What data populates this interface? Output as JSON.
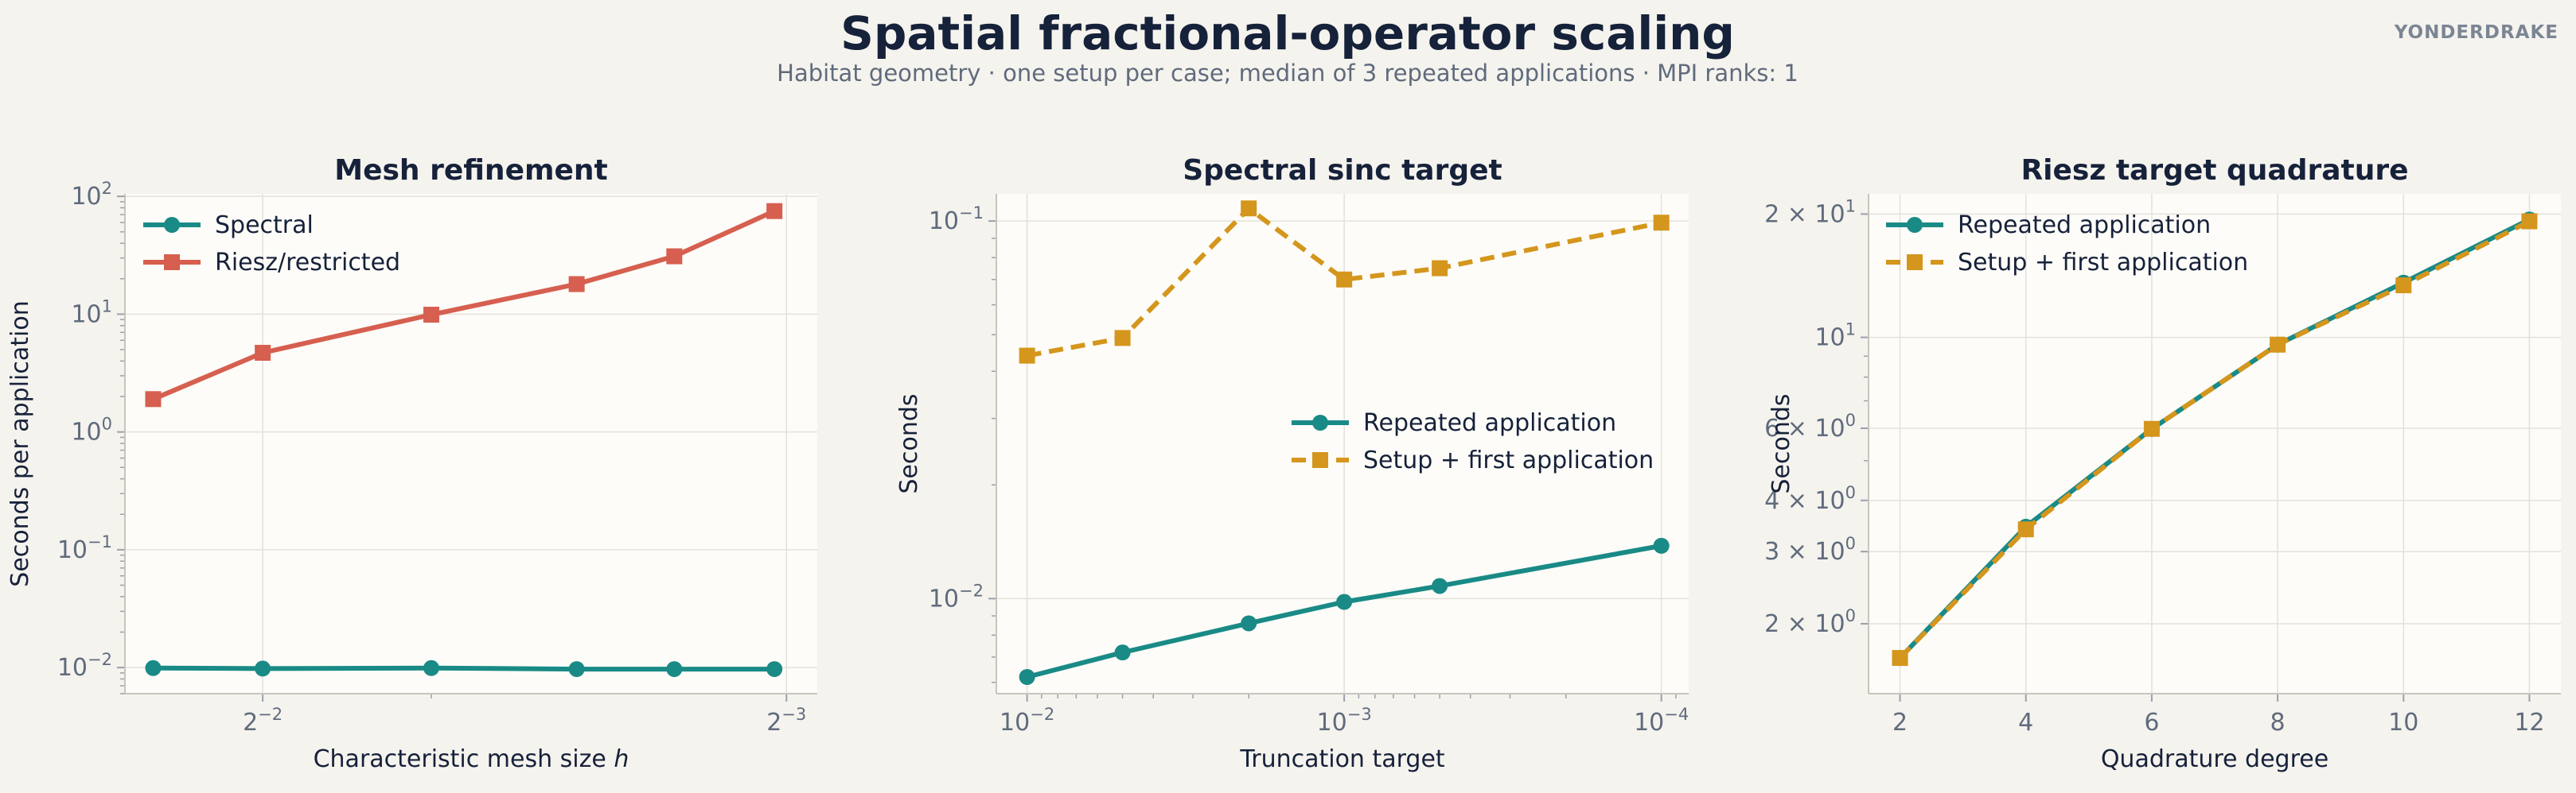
{
  "title": "Spatial fractional-operator scaling",
  "subtitle": "Habitat geometry · one setup per case; median of 3 repeated applications · MPI ranks: 1",
  "brand": "YONDERDRAKE",
  "colors": {
    "teal": "#1a8a86",
    "red": "#d65f4f",
    "gold": "#d4961c",
    "plot_bg": "#fdfcf8",
    "page_bg": "#f5f3ee"
  },
  "chart_data": [
    {
      "type": "line",
      "title": "Mesh refinement",
      "xlabel": "Characteristic mesh size",
      "xlabel_symbol": "h",
      "ylabel": "Seconds per application",
      "x_scale": "log-reversed",
      "y_scale": "log",
      "xlim": [
        0.3,
        0.12
      ],
      "ylim": [
        0.006,
        105
      ],
      "x_ticks": [
        {
          "value": 0.25,
          "base": "2",
          "exp": "−2"
        },
        {
          "value": 0.125,
          "base": "2",
          "exp": "−3"
        }
      ],
      "y_ticks": [
        {
          "value": 0.01,
          "base": "10",
          "exp": "−2"
        },
        {
          "value": 0.1,
          "base": "10",
          "exp": "−1"
        },
        {
          "value": 1,
          "base": "10",
          "exp": "0"
        },
        {
          "value": 10,
          "base": "10",
          "exp": "1"
        },
        {
          "value": 100,
          "base": "10",
          "exp": "2"
        }
      ],
      "x": [
        0.289,
        0.25,
        0.2,
        0.165,
        0.145,
        0.127
      ],
      "series": [
        {
          "name": "Spectral",
          "color": "#1a8a86",
          "marker": "circle",
          "dash": false,
          "values": [
            0.0099,
            0.0098,
            0.0099,
            0.0097,
            0.0097,
            0.0097
          ]
        },
        {
          "name": "Riesz/restricted",
          "color": "#d65f4f",
          "marker": "square",
          "dash": false,
          "values": [
            1.9,
            4.7,
            9.9,
            18,
            31,
            75
          ]
        }
      ],
      "legend": "upper-left",
      "grid": true
    },
    {
      "type": "line",
      "title": "Spectral sinc target",
      "xlabel": "Truncation target",
      "ylabel": "Seconds",
      "x_scale": "log-reversed",
      "y_scale": "log",
      "xlim": [
        0.0125,
        8.2e-05
      ],
      "ylim": [
        0.0056,
        0.118
      ],
      "x_ticks": [
        {
          "value": 0.01,
          "base": "10",
          "exp": "−2"
        },
        {
          "value": 0.001,
          "base": "10",
          "exp": "−3"
        },
        {
          "value": 0.0001,
          "base": "10",
          "exp": "−4"
        }
      ],
      "y_ticks": [
        {
          "value": 0.01,
          "base": "10",
          "exp": "−2"
        },
        {
          "value": 0.1,
          "base": "10",
          "exp": "−1"
        }
      ],
      "x": [
        0.01,
        0.005,
        0.002,
        0.001,
        0.0005,
        0.0001
      ],
      "series": [
        {
          "name": "Repeated application",
          "color": "#1a8a86",
          "marker": "circle",
          "dash": false,
          "values": [
            0.0062,
            0.0072,
            0.0086,
            0.0098,
            0.0108,
            0.0138
          ]
        },
        {
          "name": "Setup + first application",
          "color": "#d4961c",
          "marker": "square",
          "dash": true,
          "values": [
            0.044,
            0.049,
            0.108,
            0.07,
            0.075,
            0.099
          ]
        }
      ],
      "legend": "center-right",
      "grid": true
    },
    {
      "type": "line",
      "title": "Riesz target quadrature",
      "xlabel": "Quadrature degree",
      "ylabel": "Seconds",
      "x_scale": "linear",
      "y_scale": "log",
      "xlim": [
        1.5,
        12.5
      ],
      "ylim": [
        1.35,
        22.4
      ],
      "x_ticks": [
        {
          "value": 2,
          "label": "2"
        },
        {
          "value": 4,
          "label": "4"
        },
        {
          "value": 6,
          "label": "6"
        },
        {
          "value": 8,
          "label": "8"
        },
        {
          "value": 10,
          "label": "10"
        },
        {
          "value": 12,
          "label": "12"
        }
      ],
      "y_ticks": [
        {
          "value": 2,
          "label": "2 × 10",
          "exp": "0"
        },
        {
          "value": 3,
          "label": "3 × 10",
          "exp": "0"
        },
        {
          "value": 4,
          "label": "4 × 10",
          "exp": "0"
        },
        {
          "value": 6,
          "label": "6 × 10",
          "exp": "0"
        },
        {
          "value": 10,
          "label": "10",
          "exp": "1"
        },
        {
          "value": 20,
          "label": "2 × 10",
          "exp": "1"
        }
      ],
      "x": [
        2,
        4,
        6,
        8,
        10,
        12
      ],
      "series": [
        {
          "name": "Repeated application",
          "color": "#1a8a86",
          "marker": "circle",
          "dash": false,
          "values": [
            1.65,
            3.45,
            5.98,
            9.6,
            13.6,
            19.4
          ]
        },
        {
          "name": "Setup + first application",
          "color": "#d4961c",
          "marker": "square",
          "dash": true,
          "values": [
            1.65,
            3.4,
            5.98,
            9.6,
            13.4,
            19.2
          ]
        }
      ],
      "legend": "upper-left",
      "grid": true
    }
  ]
}
